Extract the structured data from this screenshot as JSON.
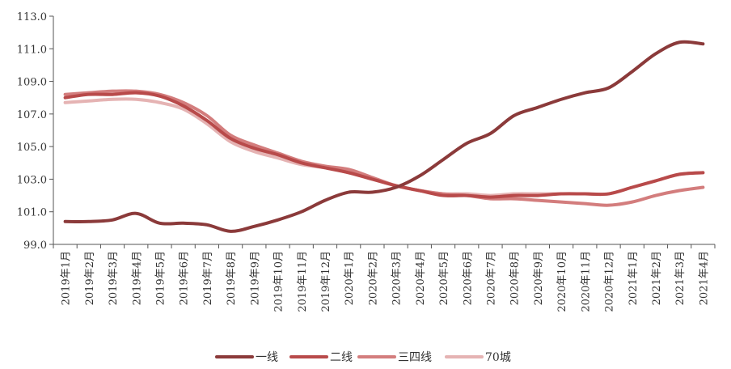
{
  "chart_data": {
    "type": "line",
    "title": "",
    "xlabel": "",
    "ylabel": "",
    "ylim": [
      99.0,
      113.0
    ],
    "yticks": [
      "99.0",
      "101.0",
      "103.0",
      "105.0",
      "107.0",
      "109.0",
      "111.0",
      "113.0"
    ],
    "grid": false,
    "legend_position": "bottom",
    "categories": [
      "2019年1月",
      "2019年2月",
      "2019年3月",
      "2019年4月",
      "2019年5月",
      "2019年6月",
      "2019年7月",
      "2019年8月",
      "2019年9月",
      "2019年10月",
      "2019年11月",
      "2019年12月",
      "2020年1月",
      "2020年2月",
      "2020年3月",
      "2020年4月",
      "2020年5月",
      "2020年6月",
      "2020年7月",
      "2020年8月",
      "2020年9月",
      "2020年10月",
      "2020年11月",
      "2020年12月",
      "2021年1月",
      "2021年2月",
      "2021年3月",
      "2021年4月"
    ],
    "series": [
      {
        "name": "一线",
        "color": "#8b3a3a",
        "values": [
          100.4,
          100.4,
          100.5,
          100.9,
          100.3,
          100.3,
          100.2,
          99.8,
          100.1,
          100.5,
          101.0,
          101.7,
          102.2,
          102.2,
          102.5,
          103.2,
          104.2,
          105.2,
          105.8,
          106.9,
          107.4,
          107.9,
          108.3,
          108.6,
          109.6,
          110.7,
          111.4,
          111.3
        ]
      },
      {
        "name": "二线",
        "color": "#b84a4a",
        "values": [
          108.0,
          108.2,
          108.2,
          108.3,
          108.1,
          107.5,
          106.6,
          105.5,
          104.9,
          104.5,
          104.0,
          103.7,
          103.4,
          103.0,
          102.6,
          102.3,
          102.0,
          102.0,
          101.9,
          102.0,
          102.0,
          102.1,
          102.1,
          102.1,
          102.5,
          102.9,
          103.3,
          103.4
        ]
      },
      {
        "name": "三四线",
        "color": "#d37d7d",
        "values": [
          108.2,
          108.3,
          108.4,
          108.4,
          108.2,
          107.7,
          106.9,
          105.7,
          105.1,
          104.6,
          104.1,
          103.8,
          103.6,
          103.1,
          102.6,
          102.3,
          102.1,
          102.0,
          101.8,
          101.8,
          101.7,
          101.6,
          101.5,
          101.4,
          101.6,
          102.0,
          102.3,
          102.5
        ]
      },
      {
        "name": "70城",
        "color": "#e5b3b3",
        "values": [
          107.7,
          107.8,
          107.9,
          107.9,
          107.7,
          107.3,
          106.4,
          105.3,
          104.7,
          104.3,
          103.9,
          103.7,
          103.4,
          103.0,
          102.6,
          102.3,
          102.1,
          102.1,
          102.0,
          102.1,
          102.1,
          102.1,
          102.1,
          102.1,
          102.5,
          102.9,
          103.3,
          103.4
        ]
      }
    ]
  }
}
